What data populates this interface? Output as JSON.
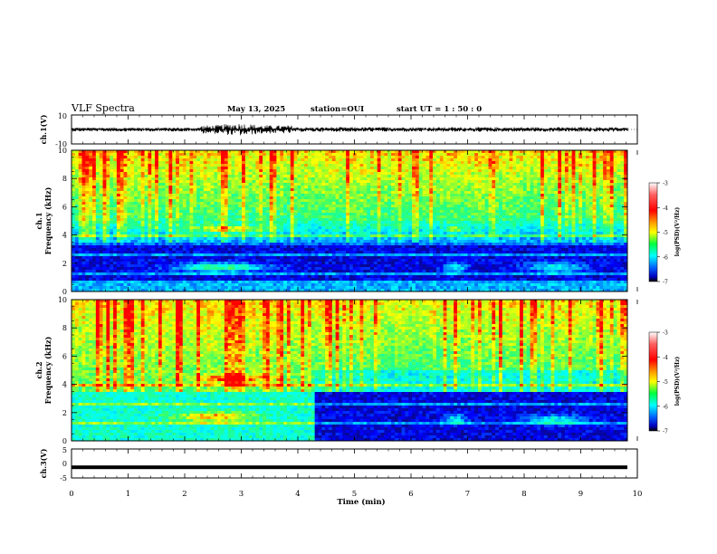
{
  "header": {
    "title": "VLF Spectra",
    "date": "May 13, 2025",
    "station": "station=OUI",
    "start": "start  UT =  1 : 50 : 0"
  },
  "chart_data": [
    {
      "id": "ch1_waveform",
      "type": "line",
      "ylabel": "ch.1(V)",
      "ylim": [
        -10,
        10
      ],
      "yticks": [
        "10",
        "-10"
      ],
      "description_values": {
        "baseline": 0
      }
    },
    {
      "id": "ch1_spectrogram",
      "type": "heatmap",
      "ylabel_top": "ch.1",
      "ylabel": "Frequency  (kHz)",
      "ylim": [
        0,
        10
      ],
      "yticks": [
        "0",
        "2",
        "4",
        "6",
        "8",
        "10"
      ],
      "colorbar": {
        "label": "log(PSD)(V²/Hz)",
        "range": [
          -7,
          -3
        ],
        "ticks": [
          "-3",
          "-4",
          "-5",
          "-6",
          "-7"
        ]
      }
    },
    {
      "id": "ch2_spectrogram",
      "type": "heatmap",
      "ylabel_top": "ch.2",
      "ylabel": "Frequency  (kHz)",
      "ylim": [
        0,
        10
      ],
      "yticks": [
        "0",
        "2",
        "4",
        "6",
        "8",
        "10"
      ],
      "colorbar": {
        "label": "log(PSD)(V²/Hz)",
        "range": [
          -7,
          -3
        ],
        "ticks": [
          "-3",
          "-4",
          "-5",
          "-6",
          "-7"
        ]
      }
    },
    {
      "id": "ch3_waveform",
      "type": "line",
      "ylabel": "ch.3(V)",
      "ylim": [
        -5,
        5
      ],
      "yticks": [
        "5",
        "0",
        "-5"
      ],
      "values": {
        "constant": -1.3
      }
    }
  ],
  "x_axis": {
    "label": "Time  (min)",
    "range": [
      0,
      10
    ],
    "ticks": [
      "0",
      "1",
      "2",
      "3",
      "4",
      "5",
      "6",
      "7",
      "8",
      "9",
      "10"
    ]
  },
  "colors": {
    "background": "#ffffff",
    "axes": "#000000",
    "colormap": [
      "#0a0a7a",
      "#0000ff",
      "#0090ff",
      "#00ffff",
      "#00ff80",
      "#80ff00",
      "#ffff00",
      "#ff8000",
      "#ff0000"
    ]
  }
}
